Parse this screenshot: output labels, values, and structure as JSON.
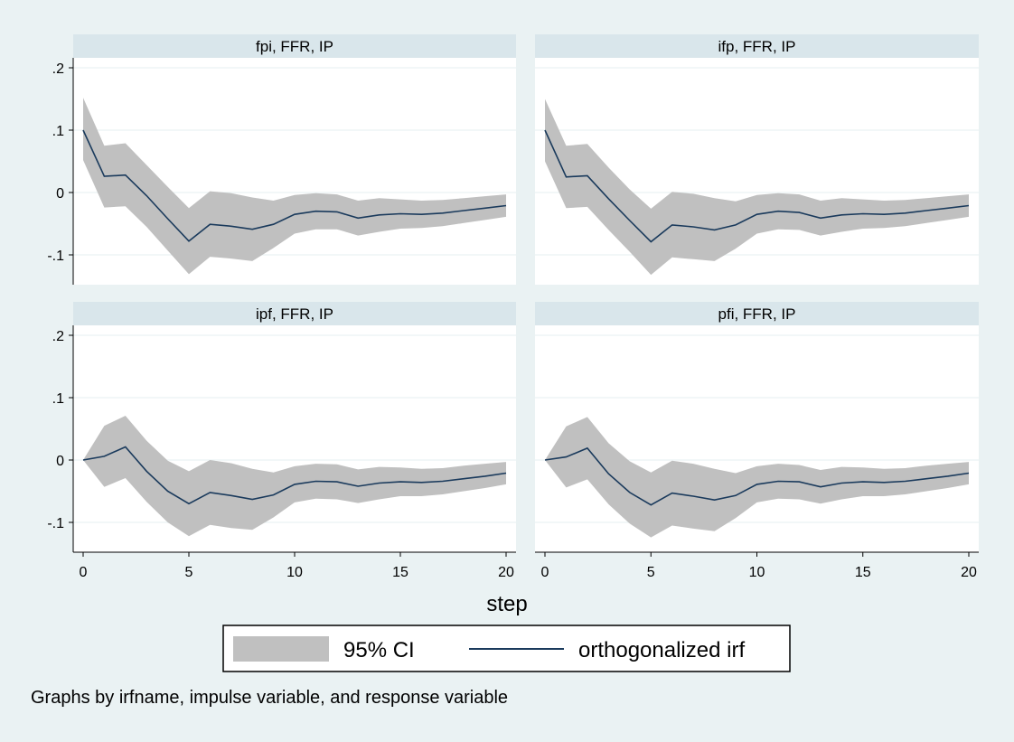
{
  "chart_data": {
    "type": "line",
    "layout": "2x2 panels",
    "xlabel": "step",
    "x_ticks": [
      0,
      5,
      10,
      15,
      20
    ],
    "xlim": [
      0,
      20
    ],
    "y_ticks": [
      0.2,
      0.1,
      0,
      -0.1
    ],
    "y_tick_labels": [
      ".2",
      ".1",
      "0",
      "-.1"
    ],
    "ylim": [
      -0.14,
      0.2
    ],
    "grid": true,
    "legend": {
      "position": "bottom-center",
      "entries": [
        {
          "label": "95% CI",
          "kind": "band",
          "color": "#c0c0c0"
        },
        {
          "label": "orthogonalized irf",
          "kind": "line",
          "color": "#1a3a5c"
        }
      ]
    },
    "note": "Graphs by irfname, impulse variable, and response variable",
    "x": [
      0,
      1,
      2,
      3,
      4,
      5,
      6,
      7,
      8,
      9,
      10,
      11,
      12,
      13,
      14,
      15,
      16,
      17,
      18,
      19,
      20
    ],
    "panels": [
      {
        "title": "fpi, FFR, IP",
        "irf": [
          0.1,
          0.026,
          0.028,
          -0.005,
          -0.042,
          -0.078,
          -0.051,
          -0.054,
          -0.059,
          -0.051,
          -0.035,
          -0.03,
          -0.031,
          -0.041,
          -0.036,
          -0.034,
          -0.035,
          -0.033,
          -0.029,
          -0.025,
          -0.021
        ],
        "upper": [
          0.152,
          0.075,
          0.079,
          0.044,
          0.009,
          -0.025,
          0.002,
          -0.001,
          -0.008,
          -0.013,
          -0.004,
          -0.001,
          -0.003,
          -0.013,
          -0.009,
          -0.011,
          -0.013,
          -0.012,
          -0.009,
          -0.006,
          -0.003
        ],
        "lower": [
          0.052,
          -0.024,
          -0.022,
          -0.055,
          -0.093,
          -0.131,
          -0.103,
          -0.106,
          -0.11,
          -0.089,
          -0.066,
          -0.059,
          -0.059,
          -0.069,
          -0.063,
          -0.058,
          -0.057,
          -0.054,
          -0.049,
          -0.044,
          -0.039
        ]
      },
      {
        "title": "ifp, FFR, IP",
        "irf": [
          0.1,
          0.025,
          0.027,
          -0.01,
          -0.045,
          -0.079,
          -0.052,
          -0.055,
          -0.06,
          -0.052,
          -0.035,
          -0.03,
          -0.032,
          -0.041,
          -0.036,
          -0.034,
          -0.035,
          -0.033,
          -0.029,
          -0.025,
          -0.021
        ],
        "upper": [
          0.15,
          0.075,
          0.078,
          0.04,
          0.005,
          -0.026,
          0.001,
          -0.002,
          -0.009,
          -0.014,
          -0.004,
          -0.001,
          -0.003,
          -0.013,
          -0.009,
          -0.011,
          -0.013,
          -0.012,
          -0.009,
          -0.006,
          -0.003
        ],
        "lower": [
          0.05,
          -0.025,
          -0.023,
          -0.06,
          -0.095,
          -0.132,
          -0.104,
          -0.107,
          -0.11,
          -0.09,
          -0.066,
          -0.059,
          -0.06,
          -0.069,
          -0.063,
          -0.058,
          -0.057,
          -0.054,
          -0.049,
          -0.044,
          -0.039
        ]
      },
      {
        "title": "ipf, FFR, IP",
        "irf": [
          0.0,
          0.006,
          0.021,
          -0.018,
          -0.05,
          -0.07,
          -0.052,
          -0.057,
          -0.063,
          -0.056,
          -0.039,
          -0.034,
          -0.035,
          -0.042,
          -0.037,
          -0.035,
          -0.036,
          -0.034,
          -0.03,
          -0.026,
          -0.021
        ],
        "upper": [
          0.0,
          0.055,
          0.071,
          0.031,
          -0.001,
          -0.018,
          0.0,
          -0.005,
          -0.014,
          -0.02,
          -0.01,
          -0.006,
          -0.007,
          -0.015,
          -0.011,
          -0.012,
          -0.014,
          -0.013,
          -0.009,
          -0.006,
          -0.003
        ],
        "lower": [
          0.0,
          -0.043,
          -0.029,
          -0.067,
          -0.1,
          -0.122,
          -0.104,
          -0.109,
          -0.112,
          -0.092,
          -0.068,
          -0.062,
          -0.063,
          -0.069,
          -0.063,
          -0.058,
          -0.058,
          -0.055,
          -0.05,
          -0.045,
          -0.039
        ]
      },
      {
        "title": "pfi, FFR, IP",
        "irf": [
          0.0,
          0.005,
          0.019,
          -0.022,
          -0.052,
          -0.072,
          -0.053,
          -0.058,
          -0.064,
          -0.057,
          -0.039,
          -0.034,
          -0.035,
          -0.043,
          -0.037,
          -0.035,
          -0.036,
          -0.034,
          -0.03,
          -0.026,
          -0.021
        ],
        "upper": [
          0.0,
          0.054,
          0.069,
          0.027,
          -0.002,
          -0.02,
          -0.001,
          -0.006,
          -0.014,
          -0.021,
          -0.01,
          -0.006,
          -0.008,
          -0.016,
          -0.011,
          -0.012,
          -0.014,
          -0.013,
          -0.009,
          -0.006,
          -0.003
        ],
        "lower": [
          0.0,
          -0.044,
          -0.031,
          -0.071,
          -0.102,
          -0.124,
          -0.105,
          -0.11,
          -0.114,
          -0.093,
          -0.068,
          -0.062,
          -0.063,
          -0.07,
          -0.063,
          -0.058,
          -0.058,
          -0.055,
          -0.05,
          -0.045,
          -0.039
        ]
      }
    ]
  },
  "colors": {
    "background": "#eaf2f3",
    "panel_bg": "#ffffff",
    "strip_bg": "#d9e6eb",
    "grid": "#eaf2f3",
    "band": "#c0c0c0",
    "line": "#1a3a5c"
  }
}
